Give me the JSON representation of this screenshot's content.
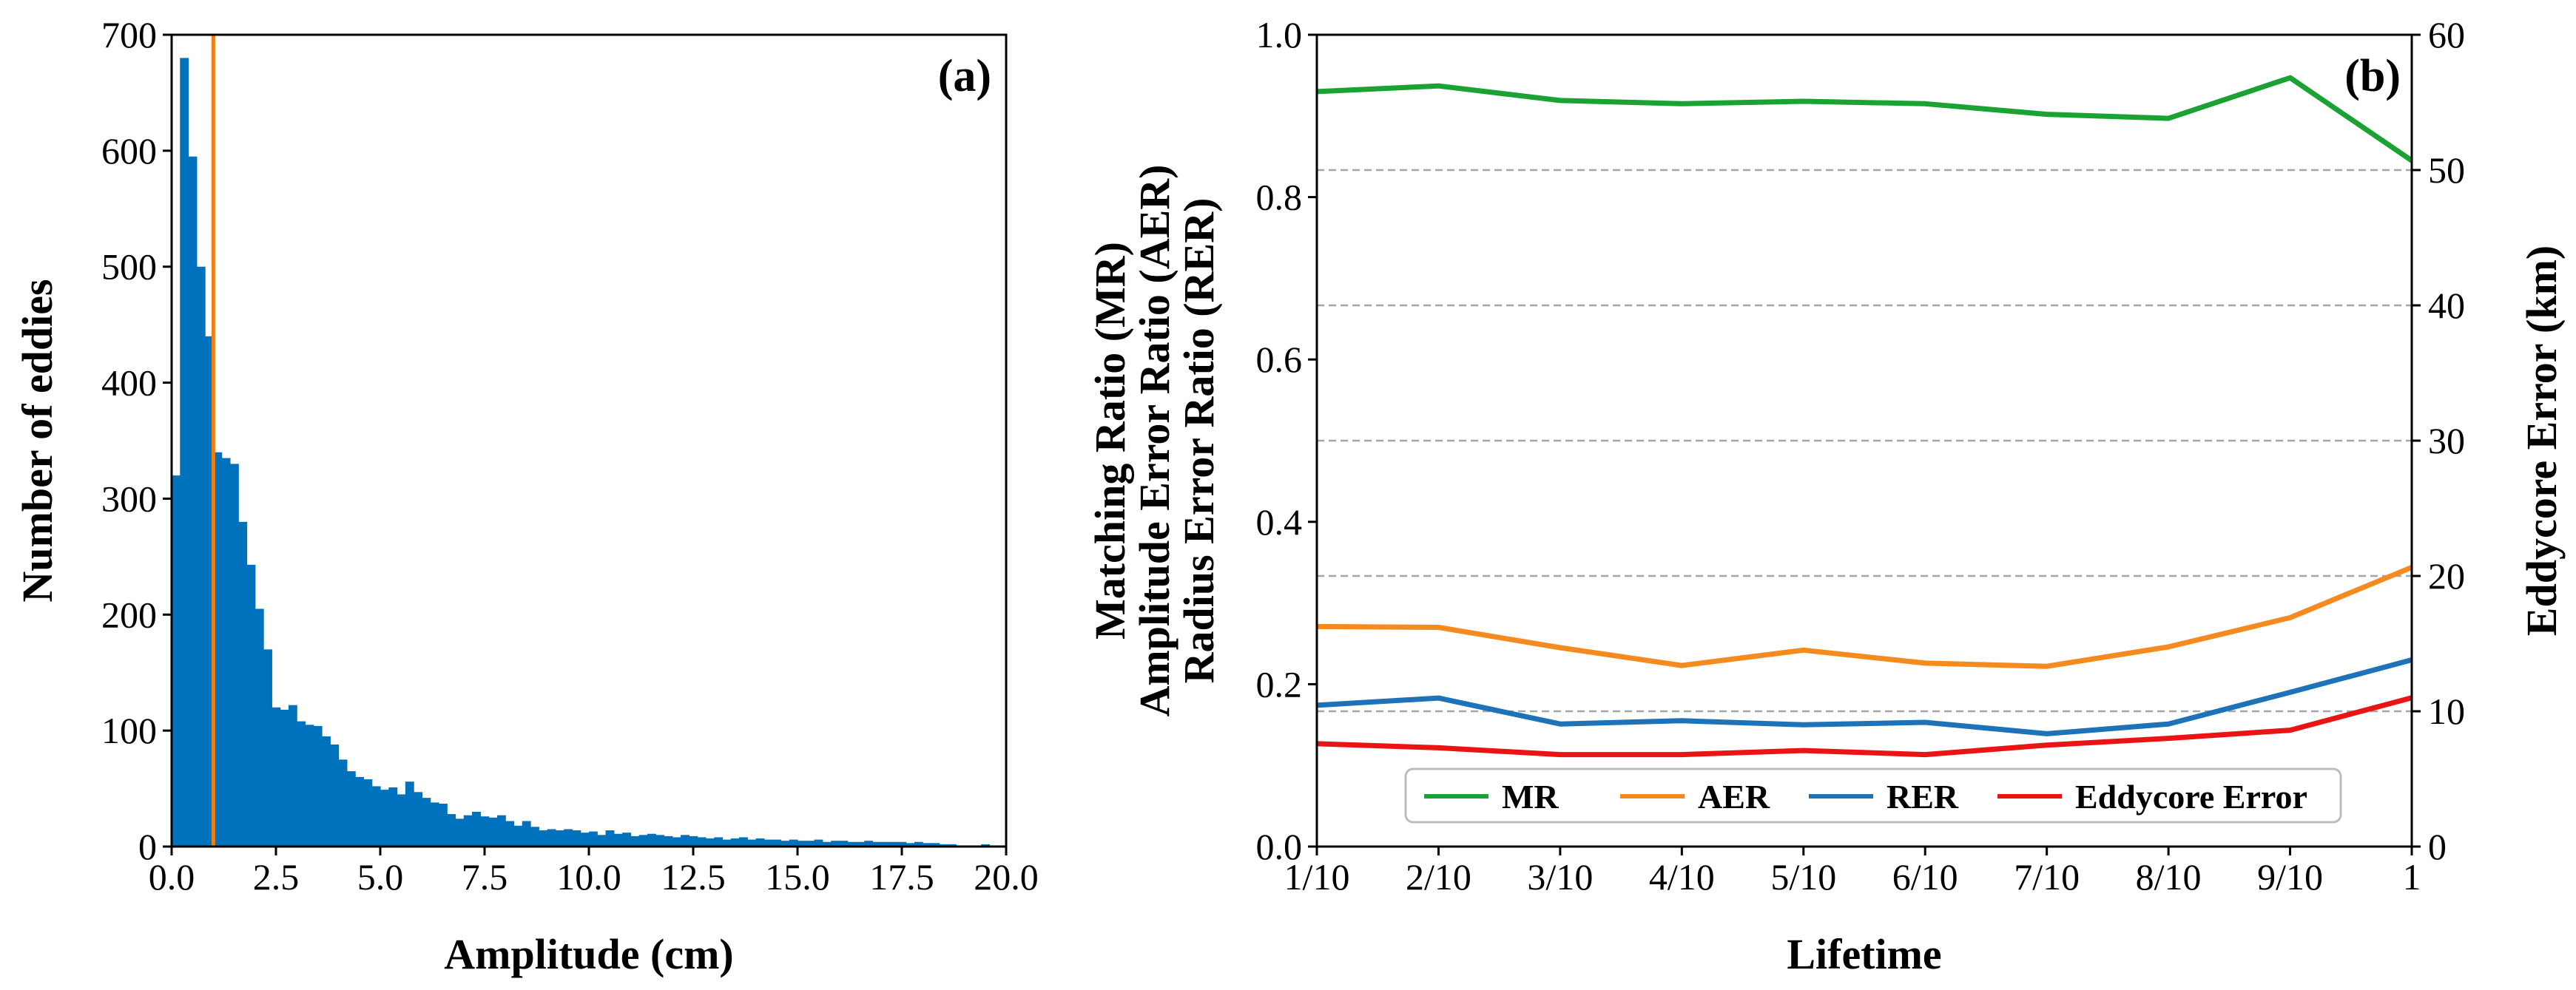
{
  "colors": {
    "hist_bar": "#0072bd",
    "threshold_line": "#f07f13",
    "mr": "#1aa332",
    "aer": "#f58a1f",
    "rer": "#1d72b8",
    "eddycore": "#ea1414",
    "grid": "#a6a6a6"
  },
  "chart_data": [
    {
      "id": "a",
      "type": "bar",
      "panel_label": "(a)",
      "xlabel": "Amplitude (cm)",
      "ylabel": "Number of eddies",
      "xlim": [
        0,
        20
      ],
      "ylim": [
        0,
        700
      ],
      "xticks": [
        0.0,
        2.5,
        5.0,
        7.5,
        10.0,
        12.5,
        15.0,
        17.5,
        20.0
      ],
      "xtick_labels": [
        "0.0",
        "2.5",
        "5.0",
        "7.5",
        "10.0",
        "12.5",
        "15.0",
        "17.5",
        "20.0"
      ],
      "yticks": [
        0,
        100,
        200,
        300,
        400,
        500,
        600,
        700
      ],
      "ytick_labels": [
        "0",
        "100",
        "200",
        "300",
        "400",
        "500",
        "600",
        "700"
      ],
      "bin_start": 0,
      "bin_width": 0.2,
      "counts": [
        320,
        680,
        595,
        500,
        440,
        340,
        335,
        330,
        280,
        243,
        205,
        170,
        120,
        118,
        122,
        108,
        105,
        104,
        95,
        88,
        75,
        65,
        60,
        58,
        52,
        49,
        51,
        45,
        56,
        47,
        42,
        38,
        37,
        28,
        24,
        27,
        30,
        26,
        25,
        27,
        22,
        18,
        22,
        17,
        14,
        15,
        14,
        15,
        14,
        12,
        13,
        10,
        14,
        11,
        12,
        9,
        10,
        11,
        10,
        9,
        8,
        10,
        9,
        8,
        7,
        8,
        6,
        7,
        8,
        6,
        7,
        6,
        6,
        5,
        6,
        5,
        5,
        6,
        4,
        5,
        5,
        4,
        4,
        5,
        4,
        4,
        4,
        4,
        3,
        4,
        3,
        3,
        2,
        2,
        1,
        1,
        1,
        2,
        1,
        1
      ],
      "threshold_x": 1.0
    },
    {
      "id": "b",
      "type": "line",
      "panel_label": "(b)",
      "xlabel": "Lifetime",
      "ylabel_lines": [
        "Matching Ratio (MR)",
        "Amplitude Error Ratio (AER)",
        "Radius Error Ratio (RER)"
      ],
      "ylabel_right": "Eddycore Error (km)",
      "categories": [
        "1/10",
        "2/10",
        "3/10",
        "4/10",
        "5/10",
        "6/10",
        "7/10",
        "8/10",
        "9/10",
        "1"
      ],
      "ylim_left": [
        0.0,
        1.0
      ],
      "ylim_right": [
        0,
        60
      ],
      "yticks_left": [
        0.0,
        0.2,
        0.4,
        0.6,
        0.8,
        1.0
      ],
      "ytick_labels_left": [
        "0.0",
        "0.2",
        "0.4",
        "0.6",
        "0.8",
        "1.0"
      ],
      "yticks_right": [
        0,
        10,
        20,
        30,
        40,
        50,
        60
      ],
      "ytick_labels_right": [
        "0",
        "10",
        "20",
        "30",
        "40",
        "50",
        "60"
      ],
      "grid": "dashed horizontal at right-axis ticks",
      "legend_location": "lower-center",
      "series": [
        {
          "name": "MR",
          "axis": "left",
          "values": [
            0.93,
            0.937,
            0.919,
            0.915,
            0.918,
            0.915,
            0.902,
            0.897,
            0.947,
            0.845
          ]
        },
        {
          "name": "AER",
          "axis": "left",
          "values": [
            0.271,
            0.27,
            0.245,
            0.223,
            0.242,
            0.226,
            0.222,
            0.246,
            0.282,
            0.344
          ]
        },
        {
          "name": "RER",
          "axis": "left",
          "values": [
            0.174,
            0.183,
            0.151,
            0.155,
            0.15,
            0.153,
            0.139,
            0.151,
            0.19,
            0.23
          ]
        },
        {
          "name": "Eddycore Error",
          "axis": "right",
          "values": [
            7.6,
            7.3,
            6.8,
            6.8,
            7.1,
            6.8,
            7.5,
            8.0,
            8.6,
            11.0
          ]
        }
      ]
    }
  ]
}
